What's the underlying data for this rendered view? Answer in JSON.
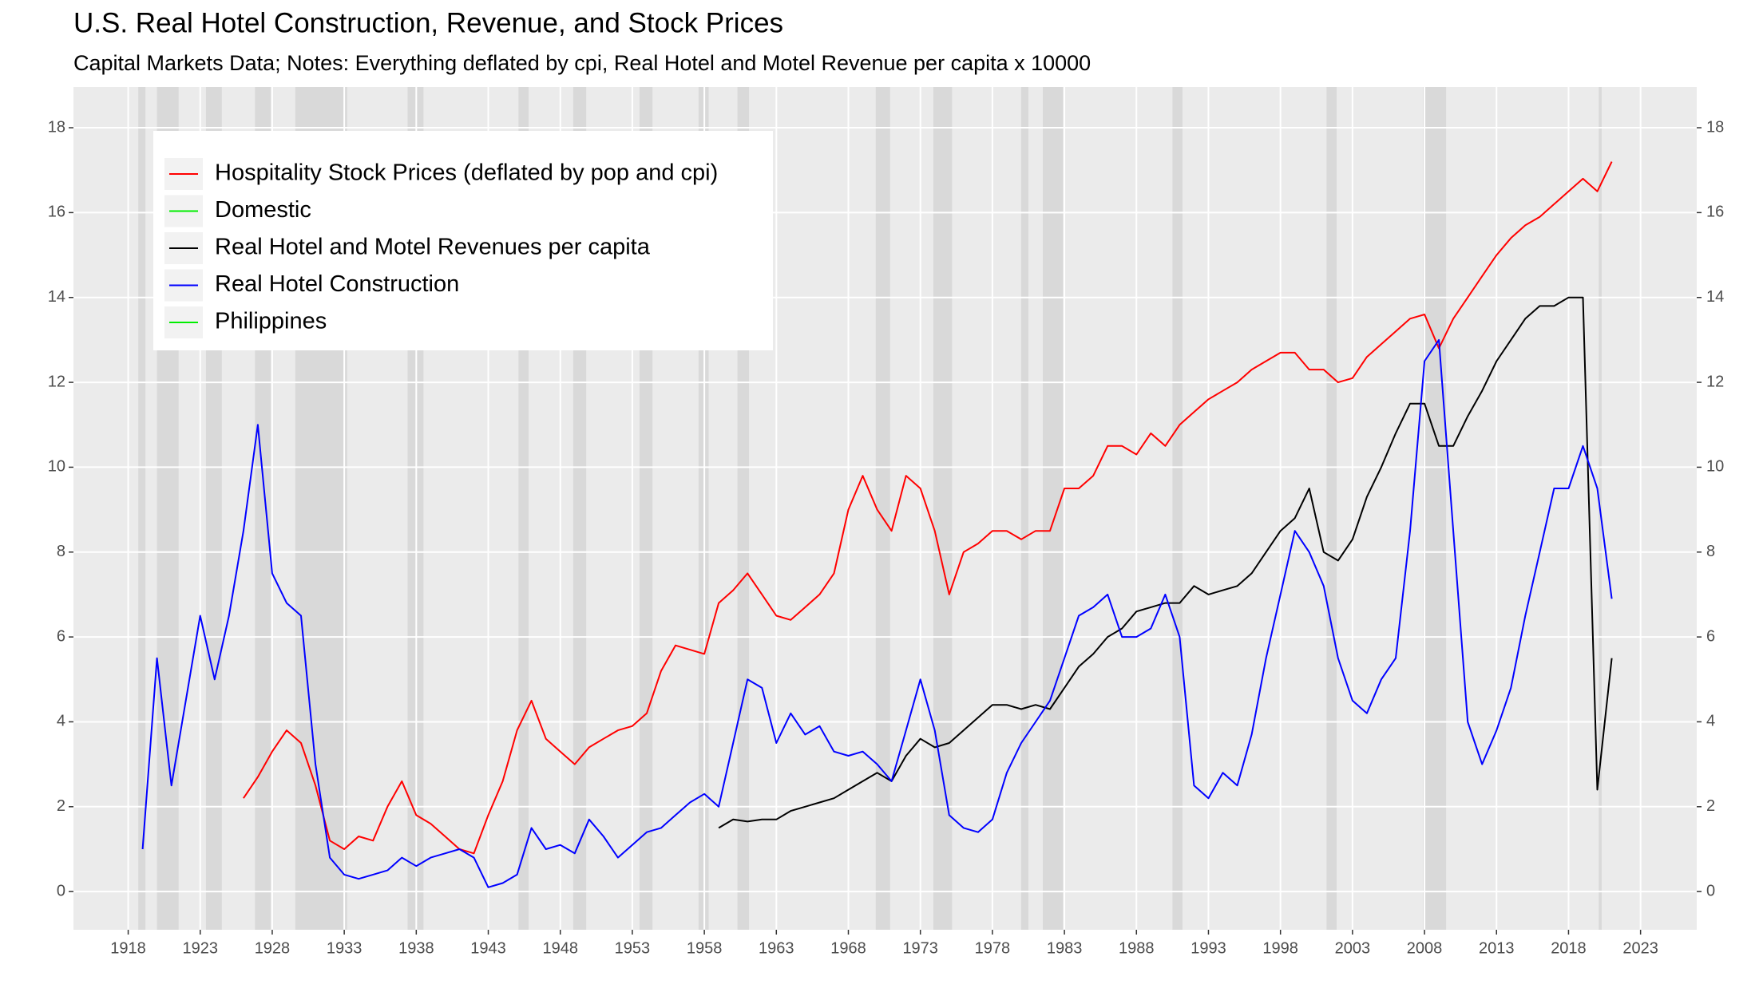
{
  "chart_data": {
    "type": "line",
    "title": "U.S. Real Hotel Construction, Revenue, and Stock Prices",
    "subtitle": "Capital Markets Data; Notes: Everything deflated by cpi, Real Hotel and Motel Revenue per capita x 10000",
    "x": [
      1919,
      1920,
      1921,
      1922,
      1923,
      1924,
      1925,
      1926,
      1927,
      1928,
      1929,
      1930,
      1931,
      1932,
      1933,
      1934,
      1935,
      1936,
      1937,
      1938,
      1939,
      1940,
      1941,
      1942,
      1943,
      1944,
      1945,
      1946,
      1947,
      1948,
      1949,
      1950,
      1951,
      1952,
      1953,
      1954,
      1955,
      1956,
      1957,
      1958,
      1959,
      1960,
      1961,
      1962,
      1963,
      1964,
      1965,
      1966,
      1967,
      1968,
      1969,
      1970,
      1971,
      1972,
      1973,
      1974,
      1975,
      1976,
      1977,
      1978,
      1979,
      1980,
      1981,
      1982,
      1983,
      1984,
      1985,
      1986,
      1987,
      1988,
      1989,
      1990,
      1991,
      1992,
      1993,
      1994,
      1995,
      1996,
      1997,
      1998,
      1999,
      2000,
      2001,
      2002,
      2003,
      2004,
      2005,
      2006,
      2007,
      2008,
      2009,
      2010,
      2011,
      2012,
      2013,
      2014,
      2015,
      2016,
      2017,
      2018,
      2019,
      2020,
      2021
    ],
    "series": [
      {
        "name": "Hospitality Stock Prices (deflated by pop and cpi)",
        "color": "#ff0000",
        "values": [
          null,
          null,
          null,
          null,
          null,
          null,
          null,
          2.2,
          2.7,
          3.3,
          3.8,
          3.5,
          2.5,
          1.2,
          1.0,
          1.3,
          1.2,
          2.0,
          2.6,
          1.8,
          1.6,
          1.3,
          1.0,
          0.9,
          1.8,
          2.6,
          3.8,
          4.5,
          3.6,
          3.3,
          3.0,
          3.4,
          3.6,
          3.8,
          3.9,
          4.2,
          5.2,
          5.8,
          5.7,
          5.6,
          6.8,
          7.1,
          7.5,
          7.0,
          6.5,
          6.4,
          6.7,
          7.0,
          7.5,
          9.0,
          9.8,
          9.0,
          8.5,
          9.8,
          9.5,
          8.5,
          7.0,
          8.0,
          8.2,
          8.5,
          8.5,
          8.3,
          8.5,
          8.5,
          9.5,
          9.5,
          9.8,
          10.5,
          10.5,
          10.3,
          10.8,
          10.5,
          11.0,
          11.3,
          11.6,
          11.8,
          12.0,
          12.3,
          12.5,
          12.7,
          12.7,
          12.3,
          12.3,
          12.0,
          12.1,
          12.6,
          12.9,
          13.2,
          13.5,
          13.6,
          12.8,
          13.5,
          14.0,
          14.5,
          15.0,
          15.4,
          15.7,
          15.9,
          16.2,
          16.5,
          16.8,
          16.5,
          17.2
        ]
      },
      {
        "name": "Domestic",
        "color": "#00ee00",
        "values": [
          null,
          null,
          null,
          null,
          null,
          null,
          null,
          null,
          null,
          null,
          null,
          null,
          null,
          null,
          null,
          null,
          null,
          null,
          null,
          null,
          null,
          null,
          null,
          null,
          null,
          null,
          null,
          null,
          null,
          null,
          null,
          null,
          null,
          null,
          null,
          null,
          null,
          null,
          null,
          null,
          null,
          null,
          null,
          null,
          null,
          null,
          null,
          null,
          null,
          null,
          null,
          null,
          null,
          null,
          null,
          null,
          null,
          null,
          null,
          null,
          null,
          null,
          null,
          null,
          null,
          null,
          null,
          null,
          null,
          null,
          null,
          null,
          null,
          null,
          null,
          null,
          null,
          null,
          null,
          null,
          null,
          null,
          null,
          null,
          null,
          null,
          null,
          null,
          null,
          null,
          null,
          null,
          null,
          null,
          null,
          null,
          null,
          null,
          null,
          null,
          null,
          null,
          null
        ]
      },
      {
        "name": "Real Hotel and Motel Revenues per capita",
        "color": "#000000",
        "values": [
          null,
          null,
          null,
          null,
          null,
          null,
          null,
          null,
          null,
          null,
          null,
          null,
          null,
          null,
          null,
          null,
          null,
          null,
          null,
          null,
          null,
          null,
          null,
          null,
          null,
          null,
          null,
          null,
          null,
          null,
          null,
          null,
          null,
          null,
          null,
          null,
          null,
          null,
          null,
          null,
          1.5,
          1.7,
          1.65,
          1.7,
          1.7,
          1.9,
          2.0,
          2.1,
          2.2,
          2.4,
          2.6,
          2.8,
          2.6,
          3.2,
          3.6,
          3.4,
          3.5,
          3.8,
          4.1,
          4.4,
          4.4,
          4.3,
          4.4,
          4.3,
          4.8,
          5.3,
          5.6,
          6.0,
          6.2,
          6.6,
          6.7,
          6.8,
          6.8,
          7.2,
          7.0,
          7.1,
          7.2,
          7.5,
          8.0,
          8.5,
          8.8,
          9.5,
          8.0,
          7.8,
          8.3,
          9.3,
          10.0,
          10.8,
          11.5,
          11.5,
          10.5,
          10.5,
          11.2,
          11.8,
          12.5,
          13.0,
          13.5,
          13.8,
          13.8,
          14.0,
          14.0,
          2.4,
          5.5
        ]
      },
      {
        "name": "Real Hotel Construction",
        "color": "#0000ff",
        "values": [
          1.0,
          5.5,
          2.5,
          4.5,
          6.5,
          5.0,
          6.5,
          8.5,
          11.0,
          7.5,
          6.8,
          6.5,
          3.0,
          0.8,
          0.4,
          0.3,
          0.4,
          0.5,
          0.8,
          0.6,
          0.8,
          0.9,
          1.0,
          0.8,
          0.1,
          0.2,
          0.4,
          1.5,
          1.0,
          1.1,
          0.9,
          1.7,
          1.3,
          0.8,
          1.1,
          1.4,
          1.5,
          1.8,
          2.1,
          2.3,
          2.0,
          3.5,
          5.0,
          4.8,
          3.5,
          4.2,
          3.7,
          3.9,
          3.3,
          3.2,
          3.3,
          3.0,
          2.6,
          3.8,
          5.0,
          3.8,
          1.8,
          1.5,
          1.4,
          1.7,
          2.8,
          3.5,
          4.0,
          4.5,
          5.5,
          6.5,
          6.7,
          7.0,
          6.0,
          6.0,
          6.2,
          7.0,
          6.0,
          2.5,
          2.2,
          2.8,
          2.5,
          3.7,
          5.5,
          7.0,
          8.5,
          8.0,
          7.2,
          5.5,
          4.5,
          4.2,
          5.0,
          5.5,
          8.5,
          12.5,
          13.0,
          8.5,
          4.0,
          3.0,
          3.8,
          4.8,
          6.5,
          8.0,
          9.5,
          9.5,
          10.5,
          9.5,
          6.9
        ]
      },
      {
        "name": "Philippines",
        "color": "#00ee00",
        "values": [
          null,
          null,
          null,
          null,
          null,
          null,
          null,
          null,
          null,
          null,
          null,
          null,
          null,
          null,
          null,
          null,
          null,
          null,
          null,
          null,
          null,
          null,
          null,
          null,
          null,
          null,
          null,
          null,
          null,
          null,
          null,
          null,
          null,
          null,
          null,
          null,
          null,
          null,
          null,
          null,
          null,
          null,
          null,
          null,
          null,
          null,
          null,
          null,
          null,
          null,
          null,
          null,
          null,
          null,
          null,
          null,
          null,
          null,
          null,
          null,
          null,
          null,
          null,
          null,
          null,
          null,
          null,
          null,
          null,
          null,
          null,
          null,
          null,
          null,
          null,
          null,
          null,
          null,
          null,
          null,
          null,
          null,
          null,
          null,
          null,
          null,
          null,
          null,
          null,
          null,
          null,
          null,
          null,
          null,
          null,
          null,
          null,
          null,
          null,
          null,
          null,
          null,
          null
        ]
      }
    ],
    "recessions": [
      [
        1918.7,
        1919.2
      ],
      [
        1920.0,
        1921.5
      ],
      [
        1923.4,
        1924.5
      ],
      [
        1926.8,
        1927.9
      ],
      [
        1929.6,
        1933.2
      ],
      [
        1937.4,
        1938.5
      ],
      [
        1945.1,
        1945.8
      ],
      [
        1948.9,
        1949.8
      ],
      [
        1953.5,
        1954.4
      ],
      [
        1957.6,
        1958.3
      ],
      [
        1960.3,
        1961.1
      ],
      [
        1969.9,
        1970.9
      ],
      [
        1973.9,
        1975.2
      ],
      [
        1980.0,
        1980.5
      ],
      [
        1981.5,
        1982.9
      ],
      [
        1990.5,
        1991.2
      ],
      [
        2001.2,
        2001.9
      ],
      [
        2007.9,
        2009.5
      ],
      [
        2020.1,
        2020.3
      ]
    ],
    "xlim": [
      1914.2,
      2026.9
    ],
    "xticks": [
      1918,
      1923,
      1928,
      1933,
      1938,
      1943,
      1948,
      1953,
      1958,
      1963,
      1968,
      1973,
      1978,
      1983,
      1988,
      1993,
      1998,
      2003,
      2008,
      2013,
      2018,
      2023
    ],
    "ylim": [
      -0.9,
      18.96
    ],
    "yticks": [
      0,
      2,
      4,
      6,
      8,
      10,
      12,
      14,
      16,
      18
    ],
    "y2lim": [
      -0.9,
      18.96
    ],
    "y2ticks": [
      0,
      2,
      4,
      6,
      8,
      10,
      12,
      14,
      16,
      18
    ],
    "grid": true,
    "legend_position": "top-left"
  }
}
